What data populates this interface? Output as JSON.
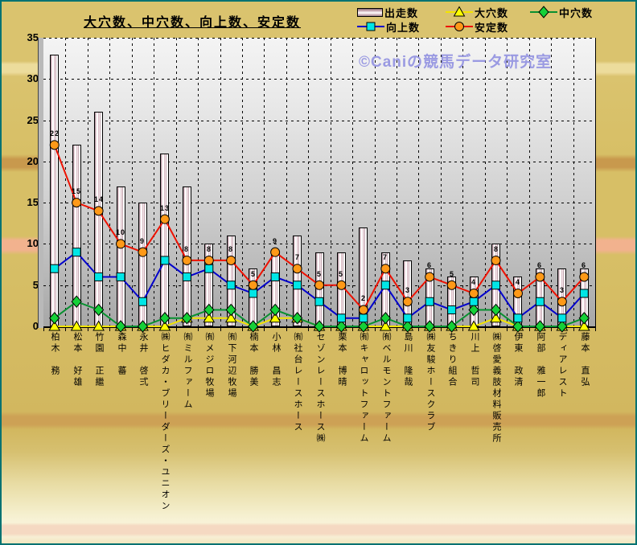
{
  "chart": {
    "title": "大穴数、中穴数、向上数、安定数",
    "watermark": "©Caniの競馬データ研究室",
    "colors": {
      "frame_border": "#007272",
      "background_gold": "#dac36e",
      "plot_top": "#f4f4f4",
      "plot_bottom": "#a7a7a7",
      "watermark_text": "#9a9ae2"
    },
    "legend": [
      {
        "label": "出走数",
        "swatch": "bar",
        "col": 0,
        "row": 0
      },
      {
        "label": "向上数",
        "swatch": "square",
        "col": 0,
        "row": 1,
        "line_color": "#0000cc",
        "marker_color": "#00e6e6"
      },
      {
        "label": "大穴数",
        "swatch": "triangle",
        "col": 1,
        "row": 0,
        "line_color": "#f2e400",
        "marker_color": "#ffff00"
      },
      {
        "label": "安定数",
        "swatch": "circle",
        "col": 1,
        "row": 1,
        "line_color": "#ee1100",
        "marker_color": "#ff9918"
      },
      {
        "label": "中穴数",
        "swatch": "diamond",
        "col": 2,
        "row": 0,
        "line_color": "#089030",
        "marker_color": "#15d038"
      }
    ]
  },
  "chart_data": {
    "type": "bar",
    "subtype": "bar-line-combo",
    "title": "大穴数、中穴数、向上数、安定数",
    "xlabel": "",
    "ylabel": "",
    "ylim": [
      0,
      35
    ],
    "yticks": [
      0,
      5,
      10,
      15,
      20,
      25,
      30,
      35
    ],
    "grid": true,
    "legend_position": "top-right",
    "categories": [
      "柏木　務",
      "松本　好雄",
      "竹園　正繼",
      "森中　蕃",
      "永井　啓弍",
      "㈱ヒダカ・ブリーダーズ・ユニオン",
      "㈲ミルファーム",
      "㈲メジロ牧場",
      "㈲下河辺牧場",
      "楠本　勝美",
      "小林　昌志",
      "㈲社台レースホース",
      "セゾンレースホース㈱",
      "栗本　博晴",
      "㈲キャロットファーム",
      "㈲ベルモントファーム",
      "島川　隆哉",
      "㈱友駿ホースクラブ",
      "ちきり組合",
      "川上　哲司",
      "㈱啓愛義肢材料販売所",
      "伊東　政清",
      "阿部　雅一郎",
      "ディアレスト",
      "藤本　直弘"
    ],
    "series": [
      {
        "name": "出走数",
        "key": "starts",
        "type": "bar",
        "marker": "none",
        "values": [
          33,
          22,
          26,
          17,
          15,
          21,
          17,
          10,
          11,
          7,
          9,
          11,
          9,
          9,
          12,
          9,
          8,
          7,
          6,
          6,
          10,
          6,
          7,
          7,
          7
        ]
      },
      {
        "name": "大穴数",
        "key": "big-upset",
        "type": "line",
        "marker": "triangle",
        "line_color": "#f2e400",
        "marker_color": "#ffff00",
        "values": [
          0,
          0,
          0,
          0,
          0,
          0,
          1,
          1,
          1,
          0,
          1,
          1,
          0,
          0,
          0,
          0,
          0,
          0,
          0,
          0,
          1,
          0,
          0,
          0,
          0
        ]
      },
      {
        "name": "中穴数",
        "key": "mid-upset",
        "type": "line",
        "marker": "diamond",
        "line_color": "#089030",
        "marker_color": "#15d038",
        "values": [
          1,
          3,
          2,
          0,
          0,
          1,
          1,
          2,
          2,
          0,
          2,
          1,
          0,
          0,
          0,
          1,
          0,
          0,
          0,
          2,
          2,
          0,
          0,
          0,
          1
        ]
      },
      {
        "name": "向上数",
        "key": "improve",
        "type": "line",
        "marker": "square",
        "line_color": "#0000cc",
        "marker_color": "#00e6e6",
        "values": [
          7,
          9,
          6,
          6,
          3,
          8,
          6,
          7,
          5,
          4,
          6,
          5,
          3,
          1,
          1,
          5,
          1,
          3,
          2,
          3,
          5,
          1,
          3,
          1,
          4
        ]
      },
      {
        "name": "安定数",
        "key": "stable",
        "type": "line",
        "marker": "circle",
        "line_color": "#ee1100",
        "marker_color": "#ff9918",
        "show_labels": true,
        "values": [
          22,
          15,
          14,
          10,
          9,
          13,
          8,
          8,
          8,
          5,
          9,
          7,
          5,
          5,
          2,
          7,
          3,
          6,
          5,
          4,
          8,
          4,
          6,
          3,
          6
        ]
      }
    ]
  }
}
